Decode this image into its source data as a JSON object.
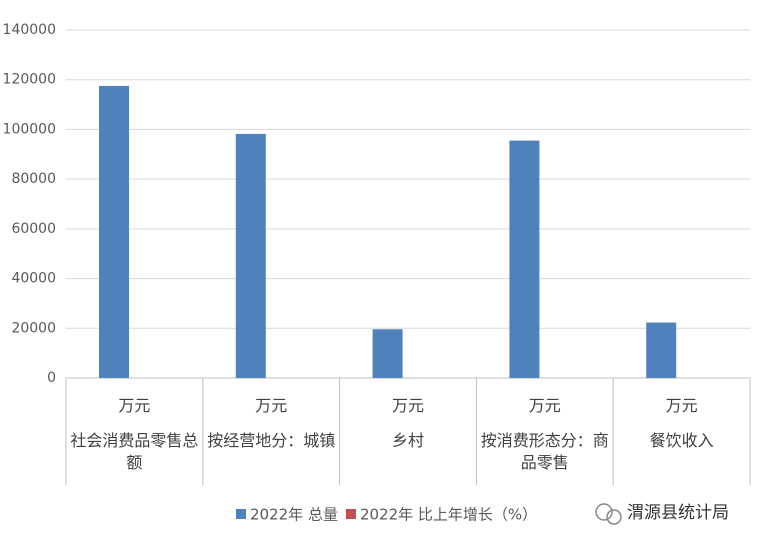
{
  "chart_data": {
    "type": "bar",
    "categories": [
      "社会消费品零售总额",
      "按经营地分：城镇",
      "乡村",
      "按消费形态分：商品零售",
      "餐饮收入"
    ],
    "category_units": [
      "万元",
      "万元",
      "万元",
      "万元",
      "万元"
    ],
    "series": [
      {
        "name": "2022年 总量",
        "color": "#4f81bd",
        "values": [
          117500,
          98200,
          19600,
          95500,
          22300
        ]
      },
      {
        "name": "2022年 比上年增长（%）",
        "color": "#c0504d",
        "values": [
          null,
          null,
          null,
          null,
          null
        ]
      }
    ],
    "ylim": [
      0,
      140000
    ],
    "yticks": [
      0,
      20000,
      40000,
      60000,
      80000,
      100000,
      120000,
      140000
    ],
    "grid": true,
    "legend": "bottom",
    "watermark": "渭源县统计局"
  }
}
